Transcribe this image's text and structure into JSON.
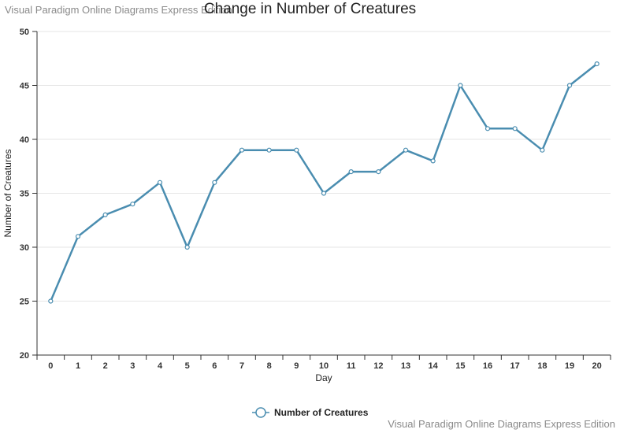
{
  "watermark_top": "Visual Paradigm Online Diagrams Express Edition",
  "watermark_bottom": "Visual Paradigm Online Diagrams Express Edition",
  "colors": {
    "line": "#4a8db0",
    "grid": "#e6e6e6",
    "axis": "#333333",
    "text": "#333333",
    "watermark": "#8a8a8a"
  },
  "chart_data": {
    "type": "line",
    "title": "Change in Number of Creatures",
    "xlabel": "Day",
    "ylabel": "Number of Creatures",
    "categories": [
      "0",
      "1",
      "2",
      "3",
      "4",
      "5",
      "6",
      "7",
      "8",
      "9",
      "10",
      "11",
      "12",
      "13",
      "14",
      "15",
      "16",
      "17",
      "18",
      "19",
      "20"
    ],
    "series": [
      {
        "name": "Number of Creatures",
        "values": [
          25,
          31,
          33,
          34,
          36,
          30,
          36,
          39,
          39,
          39,
          35,
          37,
          37,
          39,
          38,
          45,
          41,
          41,
          39,
          45,
          47
        ]
      }
    ],
    "ylim": [
      20,
      50
    ],
    "yticks": [
      20,
      25,
      30,
      35,
      40,
      45,
      50
    ],
    "grid": true,
    "legend": "bottom-center"
  }
}
